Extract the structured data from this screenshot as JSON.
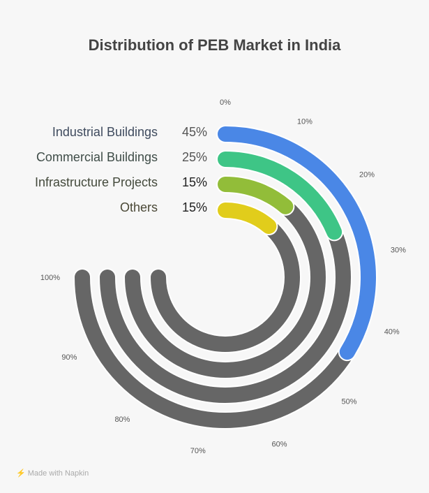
{
  "chart_data": {
    "type": "radial-bar",
    "title": "Distribution of PEB Market in India",
    "axis_ticks": [
      "0%",
      "10%",
      "20%",
      "30%",
      "40%",
      "50%",
      "60%",
      "70%",
      "80%",
      "90%",
      "100%"
    ],
    "range": [
      0,
      100
    ],
    "track_color": "#666666",
    "series": [
      {
        "name": "Industrial Buildings",
        "value": 45,
        "label": "45%",
        "color": "#4a87e6",
        "text_color": "#3f4b5e"
      },
      {
        "name": "Commercial Buildings",
        "value": 25,
        "label": "25%",
        "color": "#3ec586",
        "text_color": "#3f4d48"
      },
      {
        "name": "Infrastructure Projects",
        "value": 15,
        "label": "15%",
        "color": "#92bd39",
        "text_color": "#444a3c"
      },
      {
        "name": "Others",
        "value": 15,
        "label": "15%",
        "color": "#e1cd1b",
        "text_color": "#4a4836"
      }
    ]
  },
  "footer": "Made with Napkin"
}
